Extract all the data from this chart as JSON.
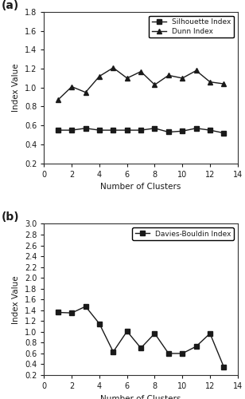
{
  "clusters": [
    1,
    2,
    3,
    4,
    5,
    6,
    7,
    8,
    9,
    10,
    11,
    12,
    13
  ],
  "silhouette": [
    0.55,
    0.55,
    0.57,
    0.55,
    0.55,
    0.55,
    0.55,
    0.57,
    0.53,
    0.54,
    0.57,
    0.55,
    0.52
  ],
  "dunn": [
    0.87,
    1.01,
    0.95,
    1.12,
    1.21,
    1.1,
    1.17,
    1.03,
    1.13,
    1.1,
    1.18,
    1.06,
    1.04
  ],
  "davies_bouldin": [
    1.36,
    1.35,
    1.47,
    1.15,
    0.63,
    1.01,
    0.7,
    0.97,
    0.6,
    0.6,
    0.73,
    0.97,
    0.35
  ],
  "panel_a": {
    "ylabel": "Index Value",
    "xlabel": "Number of Clusters",
    "ylim": [
      0.2,
      1.8
    ],
    "yticks": [
      0.2,
      0.4,
      0.6,
      0.8,
      1.0,
      1.2,
      1.4,
      1.6,
      1.8
    ],
    "xlim": [
      0,
      14
    ],
    "xticks": [
      0,
      2,
      4,
      6,
      8,
      10,
      12,
      14
    ],
    "label": "(a)"
  },
  "panel_b": {
    "ylabel": "Index Value",
    "xlabel": "Number of Clusters",
    "ylim": [
      0.2,
      3.0
    ],
    "yticks": [
      0.2,
      0.4,
      0.6,
      0.8,
      1.0,
      1.2,
      1.4,
      1.6,
      1.8,
      2.0,
      2.2,
      2.4,
      2.6,
      2.8,
      3.0
    ],
    "xlim": [
      0,
      14
    ],
    "xticks": [
      0,
      2,
      4,
      6,
      8,
      10,
      12,
      14
    ],
    "label": "(b)"
  },
  "line_color": "#1a1a1a",
  "marker_square": "s",
  "marker_triangle": "^",
  "markersize": 4,
  "linewidth": 1.0,
  "silhouette_label": "Silhouette Index",
  "dunn_label": "Dunn Index",
  "db_label": "Davies-Bouldin Index"
}
